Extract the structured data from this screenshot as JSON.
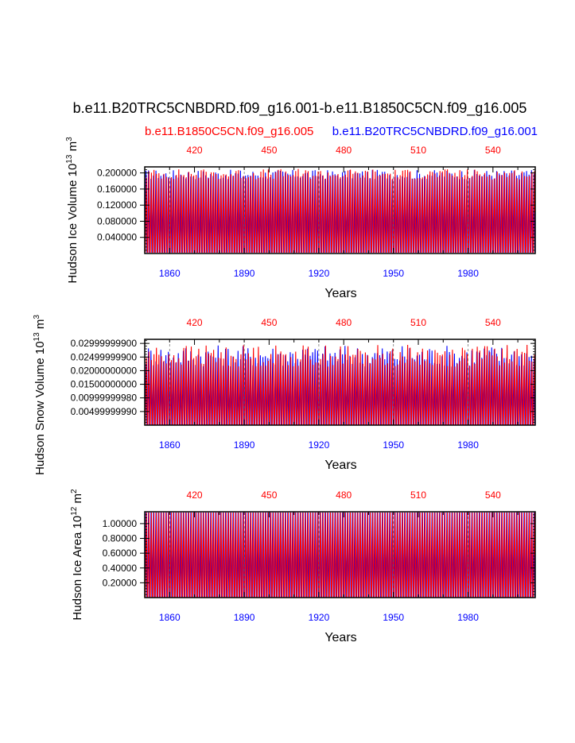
{
  "title": "b.e11.B20TRC5CNBDRD.f09_g16.001-b.e11.B1850C5CN.f09_g16.005",
  "subtitle_left": "b.e11.B1850C5CN.f09_g16.005",
  "subtitle_right": "b.e11.B20TRC5CNBDRD.f09_g16.001",
  "colors": {
    "case_b20tr": "#0000ff",
    "case_b1850": "#ff0000",
    "axis": "#000000"
  },
  "chart_data": [
    {
      "type": "line",
      "ylabel_main": "Hudson Ice Volume 10",
      "ylabel_exp": "13",
      "ylabel_unit": " m",
      "ylabel_unit_exp": "3",
      "xlabel": "Years",
      "x_bottom_ticks": [
        "1860",
        "1890",
        "1920",
        "1950",
        "1980"
      ],
      "x_top_ticks": [
        "420",
        "450",
        "480",
        "510",
        "540"
      ],
      "xlim_bottom": [
        1850,
        2007
      ],
      "xlim_top": [
        400,
        557
      ],
      "ylim": [
        0.0,
        0.215
      ],
      "y_tick_labels": [
        "0.200000",
        "0.160000",
        "0.120000",
        "0.080000",
        "0.040000"
      ],
      "y_tick_values": [
        0.2,
        0.16,
        0.12,
        0.08,
        0.04
      ],
      "series": [
        {
          "name": "b.e11.B20TRC5CNBDRD.f09_g16.001",
          "color": "blue",
          "min": 0.003,
          "max_mean": 0.196,
          "max_amp": 0.012
        },
        {
          "name": "b.e11.B1850C5CN.f09_g16.005",
          "color": "red",
          "min": 0.003,
          "max_mean": 0.197,
          "max_amp": 0.013
        }
      ]
    },
    {
      "type": "line",
      "ylabel_main": "Hudson Snow Volume 10",
      "ylabel_exp": "13",
      "ylabel_unit": " m",
      "ylabel_unit_exp": "3",
      "xlabel": "Years",
      "x_bottom_ticks": [
        "1860",
        "1890",
        "1920",
        "1950",
        "1980"
      ],
      "x_top_ticks": [
        "420",
        "450",
        "480",
        "510",
        "540"
      ],
      "xlim_bottom": [
        1850,
        2007
      ],
      "xlim_top": [
        400,
        557
      ],
      "ylim": [
        0.0,
        0.0315
      ],
      "y_tick_labels": [
        "0.02999999900",
        "0.02499999900",
        "0.02000000000",
        "0.01500000000",
        "0.00999999980",
        "0.00499999990"
      ],
      "y_tick_values": [
        0.03,
        0.025,
        0.02,
        0.015,
        0.01,
        0.005
      ],
      "series": [
        {
          "name": "b.e11.B20TRC5CNBDRD.f09_g16.001",
          "color": "blue",
          "min": 0.0003,
          "max_mean": 0.0255,
          "max_amp": 0.004
        },
        {
          "name": "b.e11.B1850C5CN.f09_g16.005",
          "color": "red",
          "min": 0.0003,
          "max_mean": 0.0255,
          "max_amp": 0.004
        }
      ]
    },
    {
      "type": "line",
      "ylabel_main": "Hudson Ice Area 10",
      "ylabel_exp": "12",
      "ylabel_unit": " m",
      "ylabel_unit_exp": "2",
      "xlabel": "Years",
      "x_bottom_ticks": [
        "1860",
        "1890",
        "1920",
        "1950",
        "1980"
      ],
      "x_top_ticks": [
        "420",
        "450",
        "480",
        "510",
        "540"
      ],
      "xlim_bottom": [
        1850,
        2007
      ],
      "xlim_top": [
        400,
        557
      ],
      "ylim": [
        0.0,
        1.16
      ],
      "y_tick_labels": [
        "1.00000",
        "0.80000",
        "0.60000",
        "0.40000",
        "0.20000"
      ],
      "y_tick_values": [
        1.0,
        0.8,
        0.6,
        0.4,
        0.2
      ],
      "series": [
        {
          "name": "b.e11.B20TRC5CNBDRD.f09_g16.001",
          "color": "blue",
          "min": 0.0,
          "max_mean": 1.15,
          "max_amp": 0.0
        },
        {
          "name": "b.e11.B1850C5CN.f09_g16.005",
          "color": "red",
          "min": 0.0,
          "max_mean": 1.15,
          "max_amp": 0.0
        }
      ]
    }
  ]
}
